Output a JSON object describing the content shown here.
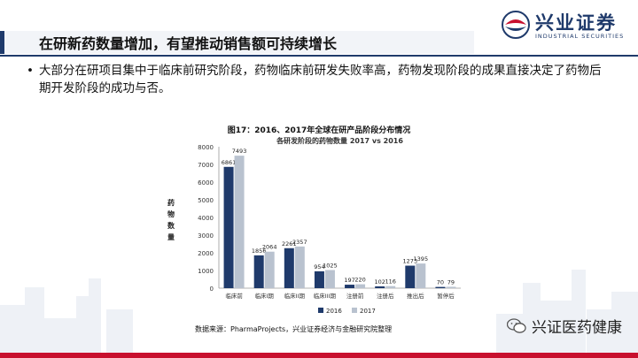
{
  "header": {
    "title": "在研新药数量增加，有望推动销售额可持续增长",
    "logo_cn": "兴业证券",
    "logo_en": "INDUSTRIAL SECURITIES"
  },
  "bullet": {
    "text": "大部分在研项目集中于临床前研究阶段，药物临床前研发失败率高，药物发现阶段的成果直接决定了药物后期开发阶段的成功与否。"
  },
  "figure": {
    "caption": "图17：2016、2017年全球在研产品阶段分布情况",
    "source": "数据来源：PharmaProjects，兴业证券经济与金融研究院整理"
  },
  "watermark": {
    "text": "兴证医药健康"
  },
  "colors": {
    "series2016": "#1f3a6b",
    "series2017": "#b9c2cf",
    "accent": "#c8102e"
  },
  "chart_data": {
    "type": "bar",
    "title": "各研发阶段的药物数量 2017 vs 2016",
    "ylabel": "药物数量",
    "xlabel": "",
    "ylim": [
      0,
      8000
    ],
    "yticks": [
      0,
      1000,
      2000,
      3000,
      4000,
      5000,
      6000,
      7000,
      8000
    ],
    "categories": [
      "临床前",
      "临床I期",
      "临床II期",
      "临床III期",
      "注册前",
      "注册后",
      "推出后",
      "暂停后"
    ],
    "series": [
      {
        "name": "2016",
        "values": [
          6861,
          1856,
          2261,
          954,
          197,
          102,
          1273,
          70
        ]
      },
      {
        "name": "2017",
        "values": [
          7493,
          2064,
          2357,
          1025,
          220,
          116,
          1395,
          79
        ]
      }
    ],
    "legend": "bottom",
    "grid": false
  }
}
